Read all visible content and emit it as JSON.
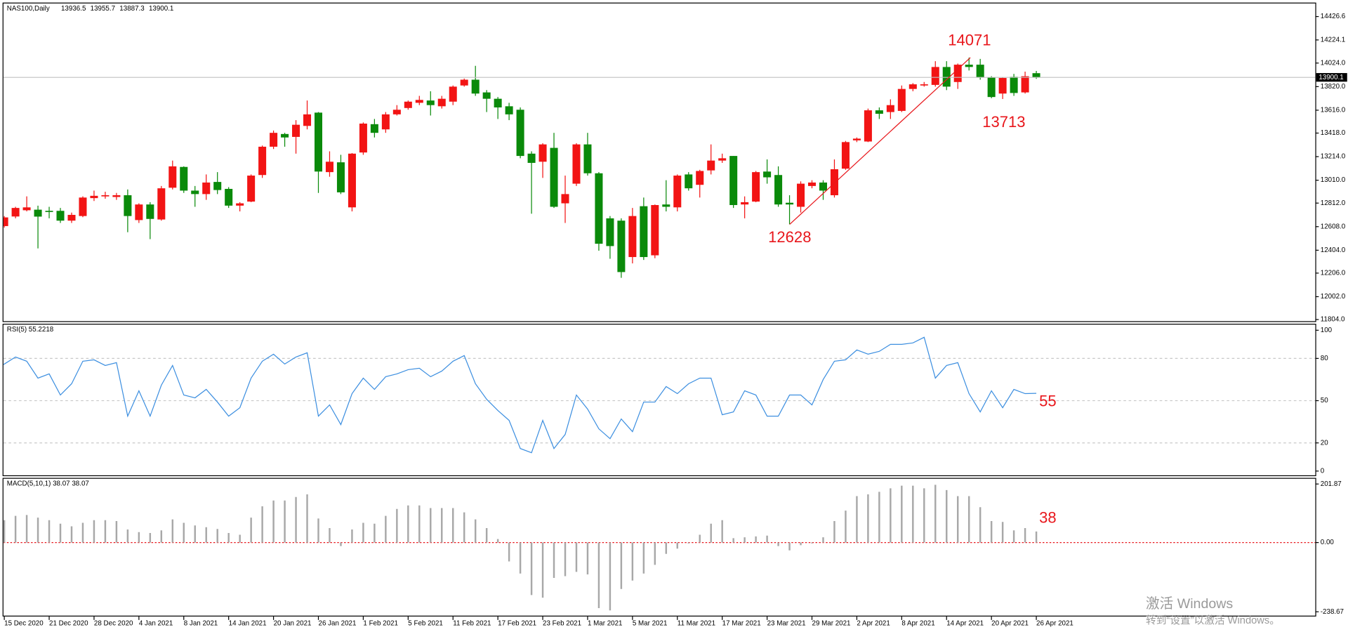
{
  "chart_data": [
    {
      "type": "candlestick",
      "title": "NAS100,Daily",
      "up_color": "#f21414",
      "down_color": "#0a8a0a",
      "categories": [
        null,
        "15 Dec 2020",
        null,
        null,
        null,
        "21 Dec 2020",
        null,
        null,
        null,
        "28 Dec 2020",
        null,
        null,
        null,
        "4 Jan 2021",
        null,
        null,
        null,
        "8 Jan 2021",
        null,
        null,
        null,
        "14 Jan 2021",
        null,
        null,
        null,
        "20 Jan 2021",
        null,
        null,
        null,
        "26 Jan 2021",
        null,
        null,
        null,
        "1 Feb 2021",
        null,
        null,
        null,
        "5 Feb 2021",
        null,
        null,
        null,
        "11 Feb 2021",
        null,
        null,
        null,
        "17 Feb 2021",
        null,
        null,
        null,
        "23 Feb 2021",
        null,
        null,
        null,
        "1 Mar 2021",
        null,
        null,
        null,
        "5 Mar 2021",
        null,
        null,
        null,
        "11 Mar 2021",
        null,
        null,
        null,
        "17 Mar 2021",
        null,
        null,
        null,
        "23 Mar 2021",
        null,
        null,
        null,
        "29 Mar 2021",
        null,
        null,
        null,
        "2 Apr 2021",
        null,
        null,
        null,
        "8 Apr 2021",
        null,
        null,
        null,
        "14 Apr 2021",
        null,
        null,
        null,
        "20 Apr 2021",
        null,
        null,
        null,
        "26 Apr 2021"
      ],
      "open": [
        12456,
        12613,
        12696,
        12750,
        12755,
        12745,
        12745,
        12660,
        12700,
        12855,
        12870,
        12865,
        12880,
        12665,
        12800,
        12670,
        12945,
        13125,
        12920,
        12890,
        12995,
        12935,
        12790,
        12825,
        13055,
        13300,
        13410,
        13385,
        13480,
        13595,
        13080,
        13165,
        12775,
        13250,
        13495,
        13450,
        13580,
        13635,
        13680,
        13700,
        13650,
        13690,
        13830,
        13880,
        13770,
        13715,
        13650,
        13620,
        13240,
        13170,
        13290,
        12810,
        12980,
        13320,
        13070,
        12680,
        12660,
        12345,
        12785,
        12360,
        12800,
        12775,
        13060,
        12970,
        13095,
        13180,
        13220,
        12800,
        12825,
        13085,
        13055,
        12815,
        12780,
        12960,
        12990,
        12880,
        13110,
        13355,
        13345,
        13615,
        13600,
        13610,
        13800,
        13830,
        13835,
        13990,
        13860,
        14010,
        14010,
        13900,
        13760,
        13905,
        13770,
        13936.5
      ],
      "high": [
        12620,
        12700,
        12780,
        12870,
        12790,
        12780,
        12770,
        12730,
        12870,
        12920,
        12910,
        12900,
        12930,
        12810,
        12820,
        12960,
        13180,
        13130,
        12960,
        13060,
        13080,
        12950,
        12820,
        13060,
        13310,
        13440,
        13420,
        13530,
        13700,
        13600,
        13260,
        13230,
        13245,
        13510,
        13540,
        13600,
        13660,
        13700,
        13740,
        13780,
        13740,
        13830,
        13890,
        14000,
        13790,
        13730,
        13680,
        13640,
        13260,
        13330,
        13420,
        13050,
        13330,
        13420,
        13080,
        12700,
        12680,
        12770,
        12860,
        12800,
        13010,
        13060,
        13080,
        13100,
        13320,
        13240,
        13220,
        12870,
        13090,
        13190,
        13130,
        12880,
        13000,
        13010,
        13010,
        13190,
        13350,
        13380,
        13630,
        13640,
        13710,
        13830,
        13850,
        13860,
        14040,
        14040,
        14020,
        14071,
        14060,
        13910,
        13900,
        13930,
        13950,
        13955.7
      ],
      "low": [
        12420,
        12600,
        12680,
        12740,
        12420,
        12680,
        12640,
        12640,
        12690,
        12830,
        12850,
        12840,
        12560,
        12640,
        12500,
        12660,
        12930,
        12900,
        12780,
        12840,
        12890,
        12770,
        12740,
        12820,
        13030,
        13280,
        13300,
        13240,
        13450,
        12900,
        13040,
        12890,
        12740,
        13230,
        13380,
        13420,
        13570,
        13620,
        13660,
        13570,
        13630,
        13660,
        13820,
        13740,
        13600,
        13540,
        13530,
        13200,
        12720,
        13030,
        12770,
        12640,
        12960,
        13050,
        12400,
        12330,
        12165,
        12290,
        12320,
        12335,
        12740,
        12740,
        12920,
        12860,
        13060,
        13160,
        12770,
        12680,
        12820,
        12980,
        12780,
        12628,
        12730,
        12940,
        12840,
        12860,
        13100,
        13340,
        13340,
        13540,
        13540,
        13600,
        13780,
        13820,
        13820,
        13790,
        13800,
        13960,
        13880,
        13720,
        13713,
        13740,
        13760,
        13887.3
      ],
      "close": [
        12613,
        12688,
        12770,
        12775,
        12695,
        12735,
        12660,
        12710,
        12860,
        12875,
        12880,
        12880,
        12700,
        12800,
        12675,
        12940,
        13130,
        12920,
        12890,
        12990,
        12925,
        12790,
        12810,
        13050,
        13300,
        13420,
        13380,
        13490,
        13580,
        13085,
        13170,
        12905,
        13240,
        13500,
        13420,
        13580,
        13620,
        13690,
        13705,
        13660,
        13715,
        13820,
        13880,
        13760,
        13715,
        13640,
        13580,
        13220,
        13160,
        13320,
        12780,
        12890,
        13320,
        13070,
        12460,
        12440,
        12215,
        12700,
        12345,
        12795,
        12780,
        13050,
        12940,
        13090,
        13180,
        13200,
        12795,
        12820,
        13080,
        13035,
        12800,
        12800,
        12980,
        12990,
        12920,
        13105,
        13340,
        13370,
        13615,
        13585,
        13660,
        13800,
        13840,
        13840,
        13990,
        13820,
        14010,
        13990,
        13900,
        13730,
        13895,
        13765,
        13910,
        13900.1
      ],
      "ylim": [
        11790,
        14540
      ],
      "yticks": [
        14426.6,
        14224.1,
        {
          "value": 14024,
          "label": "14024.0"
        },
        {
          "value": 13820,
          "label": "13820.0"
        },
        {
          "value": 13616,
          "label": "13616.0"
        },
        {
          "value": 13418,
          "label": "13418.0"
        },
        {
          "value": 13214,
          "label": "13214.0"
        },
        {
          "value": 13010,
          "label": "13010.0"
        },
        {
          "value": 12812,
          "label": "12812.0"
        },
        {
          "value": 12608,
          "label": "12608.0"
        },
        {
          "value": 12404,
          "label": "12404.0"
        },
        {
          "value": 12206,
          "label": "12206.0"
        },
        {
          "value": 12002,
          "label": "12002.0"
        },
        {
          "value": 11804,
          "label": "11804.0"
        }
      ],
      "annotations": [
        14071,
        13713,
        12628
      ]
    },
    {
      "type": "line",
      "title": "RSI(5) 55.2218",
      "color": "#3d8fe0",
      "values": [
        72,
        76,
        81,
        78,
        66,
        69,
        54,
        62,
        78,
        79,
        75,
        77,
        39,
        57,
        39,
        61,
        75,
        54,
        52,
        58,
        49,
        39,
        45,
        66,
        78,
        83,
        76,
        81,
        84,
        39,
        47,
        33,
        55,
        66,
        58,
        67,
        69,
        72,
        73,
        67,
        71,
        78,
        82,
        62,
        51,
        43,
        36,
        16,
        13,
        36,
        16,
        26,
        54,
        44,
        30,
        23,
        37,
        28,
        49,
        49,
        60,
        55,
        62,
        66,
        66,
        40,
        42,
        57,
        54,
        39,
        39,
        54,
        54,
        47,
        65,
        78,
        79,
        86,
        83,
        85,
        90,
        90,
        91,
        95,
        66,
        75,
        77,
        55,
        42,
        57,
        45,
        58,
        55,
        55.2218
      ],
      "ylim": [
        -3,
        104
      ],
      "yticks": [
        100,
        80,
        50,
        20,
        0
      ],
      "levels": [
        80,
        50,
        20
      ],
      "annotations": [
        55
      ]
    },
    {
      "type": "bar",
      "title": "MACD(5,10,1) 38.07 38.07",
      "color": "#a8a8a8",
      "values": [
        56,
        77,
        92,
        95,
        86,
        77,
        65,
        56,
        68,
        77,
        77,
        74,
        45,
        36,
        33,
        42,
        80,
        68,
        59,
        53,
        47,
        33,
        27,
        86,
        125,
        145,
        145,
        157,
        166,
        83,
        50,
        -12,
        45,
        68,
        65,
        92,
        116,
        128,
        128,
        119,
        119,
        119,
        104,
        80,
        50,
        12,
        -65,
        -107,
        -181,
        -190,
        -122,
        -116,
        -101,
        -110,
        -226,
        -234,
        -160,
        -131,
        -107,
        -77,
        -39,
        -21,
        -3,
        27,
        65,
        77,
        15,
        18,
        21,
        24,
        -12,
        -27,
        -9,
        -3,
        18,
        74,
        110,
        160,
        166,
        175,
        187,
        196,
        196,
        187,
        199,
        181,
        160,
        160,
        122,
        74,
        71,
        42,
        50,
        38.07
      ],
      "ylim": [
        -255,
        220
      ],
      "yticks": [
        201.87,
        {
          "value": 0,
          "label": "0.00"
        },
        -238.67
      ],
      "levels": [
        0
      ],
      "level_color": "#e8161b",
      "annotations": [
        38
      ]
    }
  ],
  "watermark": [
    "激活 Windows",
    "转到“设置”以激活 Windows。"
  ]
}
